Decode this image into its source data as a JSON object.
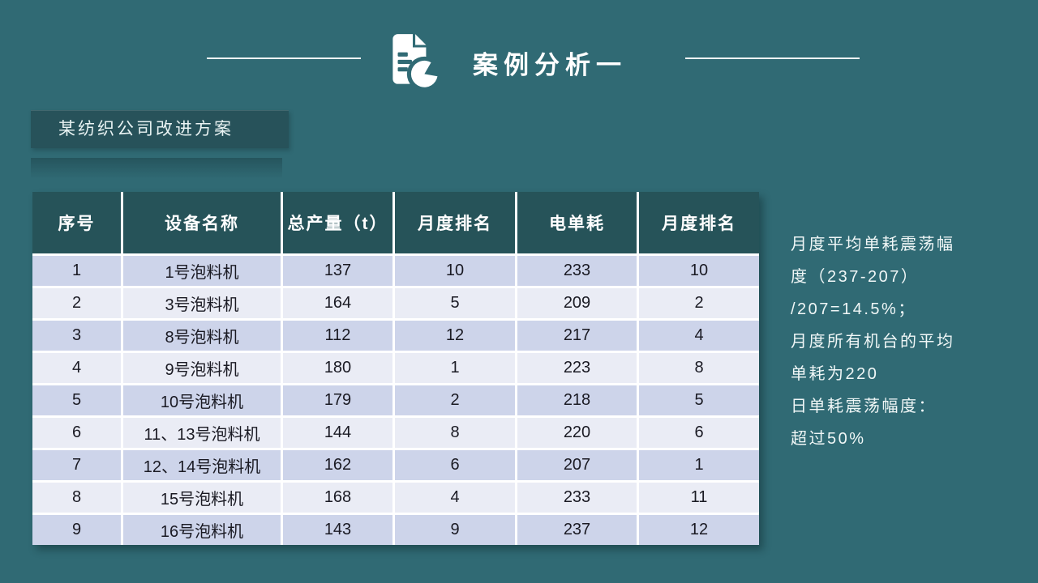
{
  "title": {
    "text": "案例分析一",
    "icon": "document-pie-chart-icon"
  },
  "subtitle": {
    "text": "某纺织公司改进方案"
  },
  "table": {
    "headers": [
      "序号",
      "设备名称",
      "总产量（t）",
      "月度排名",
      "电单耗",
      "月度排名"
    ],
    "rows": [
      {
        "cells": [
          "1",
          "1号泡料机",
          "137",
          "10",
          "233",
          "10"
        ]
      },
      {
        "cells": [
          "2",
          "3号泡料机",
          "164",
          "5",
          "209",
          "2"
        ]
      },
      {
        "cells": [
          "3",
          "8号泡料机",
          "112",
          "12",
          "217",
          "4"
        ]
      },
      {
        "cells": [
          "4",
          "9号泡料机",
          "180",
          "1",
          "223",
          "8"
        ]
      },
      {
        "cells": [
          "5",
          "10号泡料机",
          "179",
          "2",
          "218",
          "5"
        ]
      },
      {
        "cells": [
          "6",
          "11、13号泡料机",
          "144",
          "8",
          "220",
          "6"
        ]
      },
      {
        "cells": [
          "7",
          "12、14号泡料机",
          "162",
          "6",
          "207",
          "1"
        ]
      },
      {
        "cells": [
          "8",
          "15号泡料机",
          "168",
          "4",
          "233",
          "11"
        ]
      },
      {
        "cells": [
          "9",
          "16号泡料机",
          "143",
          "9",
          "237",
          "12"
        ]
      }
    ]
  },
  "notes": {
    "lines": [
      "月度平均单耗震荡幅",
      "度（237-207）",
      "/207=14.5%；",
      "月度所有机台的平均",
      "单耗为220",
      "日单耗震荡幅度：",
      "超过50%"
    ]
  },
  "colors": {
    "background": "#306A74",
    "table_header_bg": "#265359",
    "subtitle_bg": "#27525A",
    "row_odd": "#CDD4EA",
    "row_even": "#EAECF5",
    "text_light": "#F0F7F7",
    "text_dark": "#1A1A23",
    "separator": "#FFFFFF"
  }
}
